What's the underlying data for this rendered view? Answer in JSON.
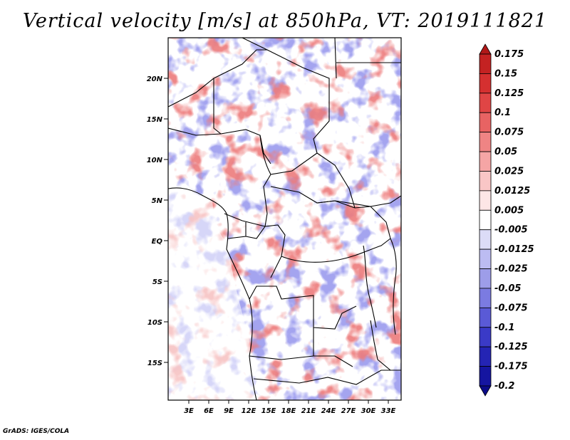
{
  "title": "Vertical velocity [m/s] at 850hPa, VT: 2019111821",
  "credit": "GrADS: IGES/COLA",
  "map": {
    "lat_ticks": [
      "20N",
      "15N",
      "10N",
      "5N",
      "EQ",
      "5S",
      "10S",
      "15S"
    ],
    "lon_ticks": [
      "3E",
      "6E",
      "9E",
      "12E",
      "15E",
      "18E",
      "21E",
      "24E",
      "27E",
      "30E",
      "33E"
    ]
  },
  "colorbar": {
    "levels": [
      "0.175",
      "0.15",
      "0.125",
      "0.1",
      "0.075",
      "0.05",
      "0.025",
      "0.0125",
      "0.005",
      "-0.005",
      "-0.0125",
      "-0.025",
      "-0.05",
      "-0.075",
      "-0.1",
      "-0.125",
      "-0.175",
      "-0.2"
    ],
    "colors": [
      "#b01818",
      "#c42222",
      "#d53030",
      "#e04545",
      "#e86363",
      "#ef8484",
      "#f5a5a5",
      "#f9c6c6",
      "#fde6e6",
      "#ffffff",
      "#dcdcf7",
      "#bcbcf2",
      "#9d9de9",
      "#7b7be1",
      "#5a5ad6",
      "#3a3ac7",
      "#2424b4",
      "#1515a0",
      "#0b0b88"
    ]
  },
  "colors": {
    "positive": "#d43b3b",
    "negative": "#4c4cd6",
    "border": "#000000"
  }
}
